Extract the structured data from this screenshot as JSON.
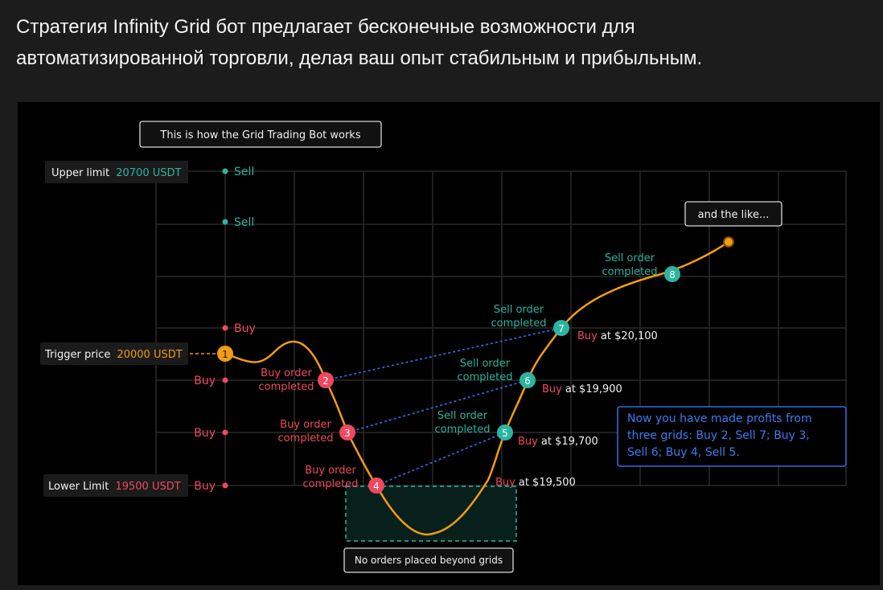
{
  "heading": {
    "line1": "Стратегия Infinity Grid бот предлагает бесконечные возможности для",
    "line2": "автоматизированной торговли, делая ваш опыт стабильным и прибыльным."
  },
  "diagram": {
    "title": "This is how the Grid Trading Bot works",
    "upper_limit": {
      "label": "Upper limit",
      "value": "20700 USDT"
    },
    "trigger_price": {
      "label": "Trigger price",
      "value": "20000 USDT"
    },
    "lower_limit": {
      "label": "Lower Limit",
      "value": "19500 USDT"
    },
    "grid_labels": {
      "sell_top": "Sell",
      "sell_2": "Sell",
      "buy_upper": "Buy",
      "buy_1": "Buy",
      "buy_2": "Buy",
      "buy_lower": "Buy"
    },
    "markers": [
      "1",
      "2",
      "3",
      "4",
      "5",
      "6",
      "7",
      "8"
    ],
    "buy_order_completed": [
      "Buy order",
      "completed"
    ],
    "sell_order_completed": [
      "Sell order",
      "completed"
    ],
    "buy_word": "Buy",
    "buy_prices": {
      "m7": "at $20,100",
      "m6": "at $19,900",
      "m5": "at $19,700",
      "m4": "at $19,500"
    },
    "and_the_like": "and the like...",
    "profit_note": [
      "Now you have made profits from",
      "three grids: Buy 2, Sell 7; Buy 3,",
      "Sell 6; Buy 4, Sell 5."
    ],
    "no_orders": "No orders placed beyond grids",
    "colors": {
      "sell": "#2bb5a0",
      "buy": "#f0485f",
      "price_line": "#f39c12",
      "link": "#2d6cdf",
      "grid": "#2a2a2a"
    }
  }
}
